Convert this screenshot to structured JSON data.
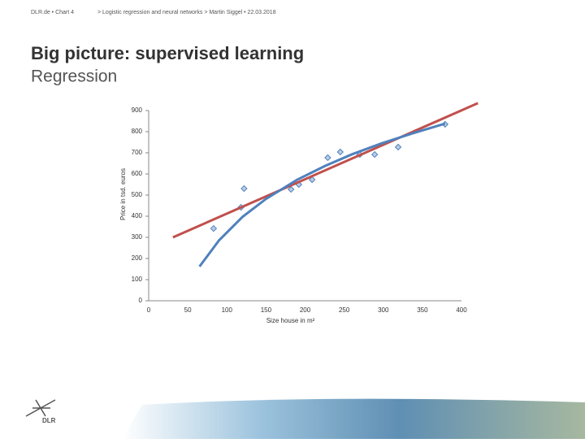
{
  "header": {
    "breadcrumb": "DLR.de  •  Chart 4",
    "path": "> Logistic regression and neural networks > Martin Siggel  •  22.03.2018",
    "title": "Big picture: supervised learning",
    "subtitle": "Regression"
  },
  "logo": "DLR",
  "chart_data": {
    "type": "scatter",
    "xlabel": "Size house in m²",
    "ylabel": "Price in tsd. euros",
    "xlim": [
      0,
      400
    ],
    "ylim": [
      0,
      900
    ],
    "xticks": [
      0,
      50,
      100,
      150,
      200,
      250,
      300,
      350,
      400
    ],
    "yticks": [
      0,
      100,
      200,
      300,
      400,
      500,
      600,
      700,
      800,
      900
    ],
    "series": [
      {
        "type": "scatter",
        "color": "#4f81bd",
        "x": [
          83,
          118,
          122,
          182,
          192,
          209,
          229,
          245,
          270,
          289,
          319,
          379
        ],
        "values": [
          342,
          442,
          531,
          527,
          550,
          573,
          677,
          704,
          692,
          692,
          727,
          835
        ]
      },
      {
        "type": "line",
        "color": "#c0504d",
        "x": [
          31,
          421
        ],
        "values": [
          300,
          935
        ]
      },
      {
        "type": "line",
        "color": "#4f81bd",
        "x": [
          65,
          90,
          120,
          150,
          190,
          225,
          260,
          298,
          340,
          379
        ],
        "values": [
          162,
          286,
          397,
          482,
          573,
          637,
          693,
          745,
          795,
          838
        ]
      }
    ]
  }
}
